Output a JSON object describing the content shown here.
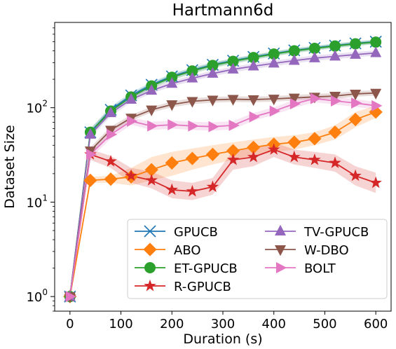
{
  "chart_data": {
    "type": "line",
    "title": "Hartmann6d",
    "xlabel": "Duration (s)",
    "ylabel": "Dataset Size",
    "xlim": [
      -30,
      630
    ],
    "ylim": [
      0.7,
      800
    ],
    "yscale": "log",
    "xticks": [
      0,
      100,
      200,
      300,
      400,
      500,
      600
    ],
    "yticks": [
      {
        "value": 1,
        "base": "10",
        "exp": "0"
      },
      {
        "value": 10,
        "base": "10",
        "exp": "1"
      },
      {
        "value": 100,
        "base": "10",
        "exp": "2"
      }
    ],
    "grid": false,
    "legend_position": "lower-right",
    "x": [
      0,
      40,
      80,
      120,
      160,
      200,
      240,
      280,
      320,
      360,
      400,
      440,
      480,
      520,
      560,
      600
    ],
    "series": [
      {
        "name": "GPUCB",
        "color": "#1f77b4",
        "marker": "x",
        "values": [
          1,
          55,
          95,
          135,
          175,
          215,
          250,
          285,
          315,
          345,
          375,
          405,
          430,
          455,
          480,
          500
        ],
        "band": [
          [
            1,
            1
          ],
          [
            50,
            60
          ],
          [
            87,
            103
          ],
          [
            125,
            145
          ],
          [
            163,
            187
          ],
          [
            200,
            230
          ],
          [
            233,
            267
          ],
          [
            267,
            303
          ],
          [
            296,
            334
          ],
          [
            325,
            365
          ],
          [
            354,
            396
          ],
          [
            383,
            427
          ],
          [
            407,
            453
          ],
          [
            431,
            479
          ],
          [
            455,
            505
          ],
          [
            474,
            526
          ]
        ]
      },
      {
        "name": "ABO",
        "color": "#ff7f0e",
        "marker": "diamond",
        "values": [
          1,
          17,
          17.5,
          18.5,
          22,
          26,
          29,
          32,
          35,
          38,
          41,
          43,
          47,
          55,
          75,
          90
        ],
        "band": [
          [
            1,
            1
          ],
          [
            16,
            18.5
          ],
          [
            16,
            19
          ],
          [
            15,
            23
          ],
          [
            17,
            30
          ],
          [
            19,
            34
          ],
          [
            22,
            37
          ],
          [
            25,
            40
          ],
          [
            28,
            43
          ],
          [
            31,
            46
          ],
          [
            34,
            49
          ],
          [
            36,
            51
          ],
          [
            40,
            55
          ],
          [
            46,
            65
          ],
          [
            62,
            90
          ],
          [
            78,
            105
          ]
        ]
      },
      {
        "name": "ET-GPUCB",
        "color": "#2ca02c",
        "marker": "circle",
        "values": [
          1,
          55,
          92,
          130,
          170,
          210,
          245,
          280,
          310,
          340,
          370,
          400,
          425,
          450,
          475,
          495
        ],
        "band": [
          [
            1,
            1
          ],
          [
            50,
            60
          ],
          [
            85,
            100
          ],
          [
            121,
            140
          ],
          [
            158,
            182
          ],
          [
            196,
            225
          ],
          [
            229,
            262
          ],
          [
            262,
            299
          ],
          [
            291,
            330
          ],
          [
            320,
            361
          ],
          [
            349,
            392
          ],
          [
            378,
            423
          ],
          [
            402,
            449
          ],
          [
            426,
            475
          ],
          [
            450,
            501
          ],
          [
            470,
            521
          ]
        ]
      },
      {
        "name": "R-GPUCB",
        "color": "#d62728",
        "marker": "star",
        "values": [
          1,
          32,
          27,
          19,
          17,
          13.5,
          13,
          14.5,
          28,
          30,
          36,
          30,
          28,
          26,
          19,
          16
        ],
        "band": [
          [
            1,
            1
          ],
          [
            28,
            36
          ],
          [
            23,
            31
          ],
          [
            16,
            23
          ],
          [
            14,
            21
          ],
          [
            11,
            17
          ],
          [
            10.5,
            16
          ],
          [
            12,
            18
          ],
          [
            22,
            35
          ],
          [
            24,
            37
          ],
          [
            30,
            43
          ],
          [
            25,
            36
          ],
          [
            23,
            34
          ],
          [
            21,
            32
          ],
          [
            15,
            24
          ],
          [
            12.5,
            20.5
          ]
        ]
      },
      {
        "name": "TV-GPUCB",
        "color": "#9467bd",
        "marker": "triangle-up",
        "values": [
          1,
          52,
          88,
          122,
          152,
          180,
          205,
          230,
          255,
          275,
          295,
          315,
          335,
          350,
          365,
          380
        ],
        "band": [
          [
            1,
            1
          ],
          [
            48,
            57
          ],
          [
            81,
            96
          ],
          [
            114,
            131
          ],
          [
            142,
            163
          ],
          [
            168,
            193
          ],
          [
            192,
            219
          ],
          [
            215,
            246
          ],
          [
            238,
            272
          ],
          [
            257,
            294
          ],
          [
            276,
            315
          ],
          [
            295,
            336
          ],
          [
            313,
            358
          ],
          [
            327,
            374
          ],
          [
            342,
            390
          ],
          [
            356,
            405
          ]
        ]
      },
      {
        "name": "W-DBO",
        "color": "#8c564b",
        "marker": "triangle-down",
        "values": [
          1,
          35,
          58,
          78,
          95,
          108,
          117,
          121,
          123,
          122,
          124,
          127,
          130,
          133,
          140,
          143
        ],
        "band": [
          [
            1,
            1
          ],
          [
            32,
            38
          ],
          [
            54,
            63
          ],
          [
            73,
            84
          ],
          [
            89,
            102
          ],
          [
            101,
            116
          ],
          [
            109,
            126
          ],
          [
            113,
            130
          ],
          [
            115,
            132
          ],
          [
            114,
            131
          ],
          [
            116,
            133
          ],
          [
            119,
            136
          ],
          [
            121,
            140
          ],
          [
            124,
            143
          ],
          [
            131,
            150
          ],
          [
            134,
            153
          ]
        ]
      },
      {
        "name": "BOLT",
        "color": "#e377c2",
        "marker": "triangle-right",
        "values": [
          1,
          32,
          52,
          72,
          64,
          66,
          64,
          63,
          65,
          80,
          92,
          110,
          125,
          118,
          112,
          105
        ],
        "band": [
          [
            1,
            1
          ],
          [
            29,
            35
          ],
          [
            47,
            57
          ],
          [
            66,
            79
          ],
          [
            58,
            71
          ],
          [
            60,
            73
          ],
          [
            58,
            71
          ],
          [
            57,
            70
          ],
          [
            59,
            72
          ],
          [
            73,
            88
          ],
          [
            84,
            101
          ],
          [
            100,
            121
          ],
          [
            114,
            137
          ],
          [
            108,
            130
          ],
          [
            102,
            123
          ],
          [
            96,
            115
          ]
        ]
      }
    ]
  }
}
